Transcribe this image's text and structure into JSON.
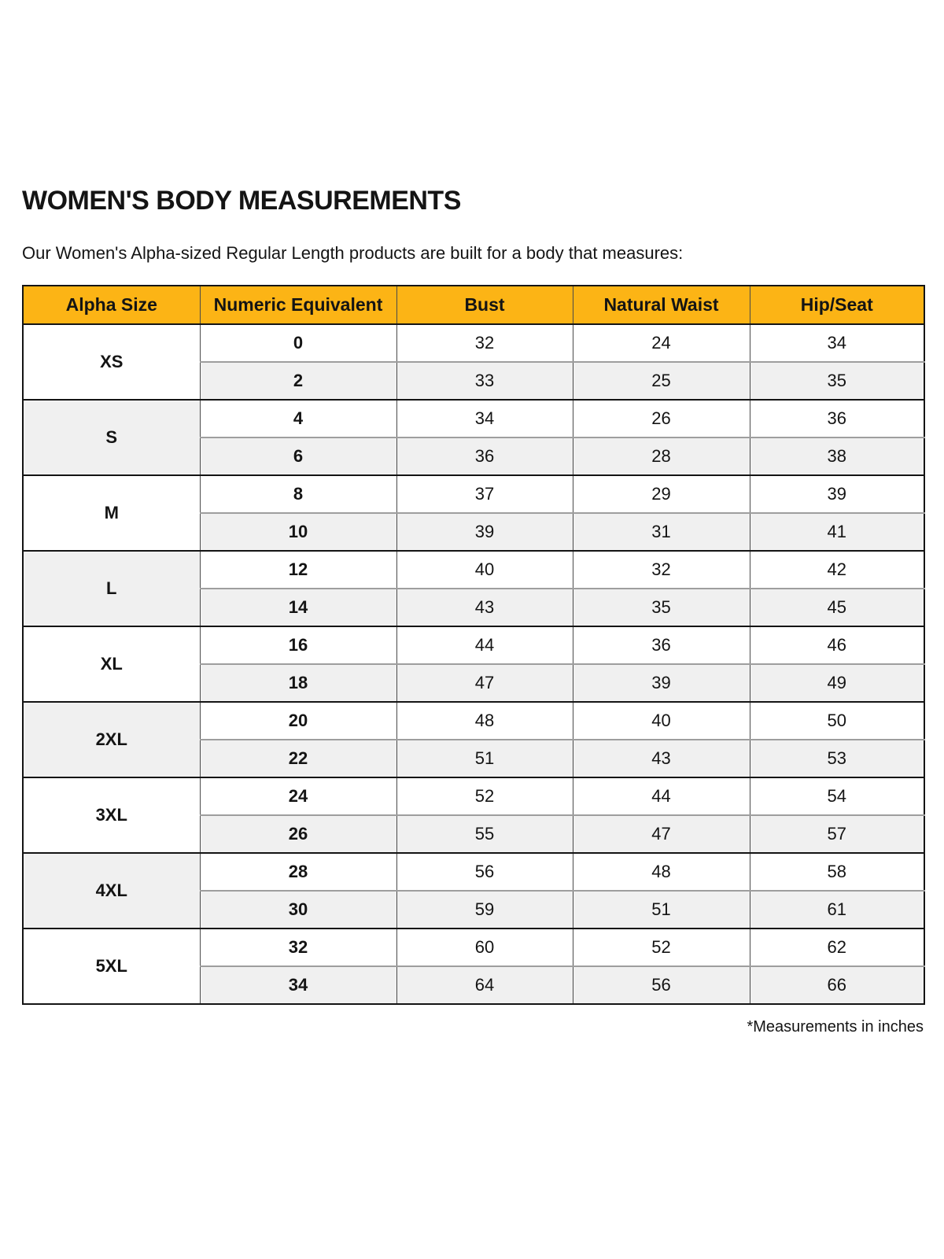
{
  "page": {
    "title": "WOMEN'S BODY MEASUREMENTS",
    "subtitle": "Our Women's Alpha-sized Regular Length products are built for a body that measures:",
    "footnote": "*Measurements in inches"
  },
  "colors": {
    "header_bg": "#FCB415",
    "alt_row_bg": "#F0F0F0",
    "border_dark": "#141414",
    "border_gray": "#9E9E9E"
  },
  "table": {
    "columns": [
      "Alpha Size",
      "Numeric Equivalent",
      "Bust",
      "Natural Waist",
      "Hip/Seat"
    ],
    "groups": [
      {
        "alpha": "XS",
        "rows": [
          {
            "numeric": "0",
            "bust": "32",
            "waist": "24",
            "hip": "34"
          },
          {
            "numeric": "2",
            "bust": "33",
            "waist": "25",
            "hip": "35"
          }
        ]
      },
      {
        "alpha": "S",
        "rows": [
          {
            "numeric": "4",
            "bust": "34",
            "waist": "26",
            "hip": "36"
          },
          {
            "numeric": "6",
            "bust": "36",
            "waist": "28",
            "hip": "38"
          }
        ]
      },
      {
        "alpha": "M",
        "rows": [
          {
            "numeric": "8",
            "bust": "37",
            "waist": "29",
            "hip": "39"
          },
          {
            "numeric": "10",
            "bust": "39",
            "waist": "31",
            "hip": "41"
          }
        ]
      },
      {
        "alpha": "L",
        "rows": [
          {
            "numeric": "12",
            "bust": "40",
            "waist": "32",
            "hip": "42"
          },
          {
            "numeric": "14",
            "bust": "43",
            "waist": "35",
            "hip": "45"
          }
        ]
      },
      {
        "alpha": "XL",
        "rows": [
          {
            "numeric": "16",
            "bust": "44",
            "waist": "36",
            "hip": "46"
          },
          {
            "numeric": "18",
            "bust": "47",
            "waist": "39",
            "hip": "49"
          }
        ]
      },
      {
        "alpha": "2XL",
        "rows": [
          {
            "numeric": "20",
            "bust": "48",
            "waist": "40",
            "hip": "50"
          },
          {
            "numeric": "22",
            "bust": "51",
            "waist": "43",
            "hip": "53"
          }
        ]
      },
      {
        "alpha": "3XL",
        "rows": [
          {
            "numeric": "24",
            "bust": "52",
            "waist": "44",
            "hip": "54"
          },
          {
            "numeric": "26",
            "bust": "55",
            "waist": "47",
            "hip": "57"
          }
        ]
      },
      {
        "alpha": "4XL",
        "rows": [
          {
            "numeric": "28",
            "bust": "56",
            "waist": "48",
            "hip": "58"
          },
          {
            "numeric": "30",
            "bust": "59",
            "waist": "51",
            "hip": "61"
          }
        ]
      },
      {
        "alpha": "5XL",
        "rows": [
          {
            "numeric": "32",
            "bust": "60",
            "waist": "52",
            "hip": "62"
          },
          {
            "numeric": "34",
            "bust": "64",
            "waist": "56",
            "hip": "66"
          }
        ]
      }
    ]
  }
}
